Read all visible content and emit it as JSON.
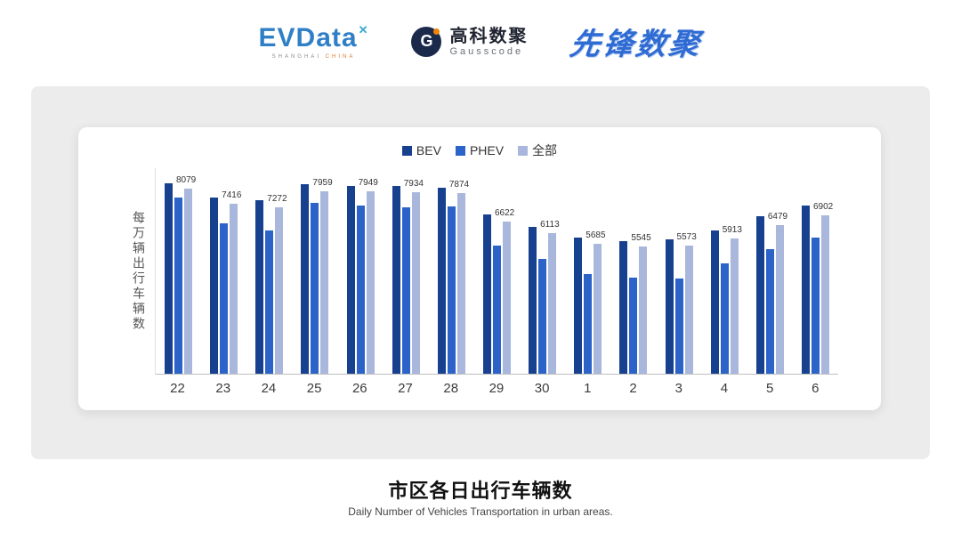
{
  "header": {
    "evdata": {
      "name": "EVData",
      "star": "✕",
      "tagline_left": "SHANGHAI",
      "tagline_right": "CHINA"
    },
    "gausscode": {
      "icon_letter": "G",
      "cn": "高科数聚",
      "en": "Gausscode"
    },
    "xianfeng": {
      "name": "先锋数聚"
    }
  },
  "chart_data": {
    "type": "bar",
    "title": "市区各日出行车辆数",
    "subtitle": "Daily Number of Vehicles Transportation in urban areas.",
    "ylabel": "每万辆出行车辆数",
    "xlabel": "",
    "ylim": [
      0,
      9000
    ],
    "grid": false,
    "legend_position": "top",
    "categories": [
      "22",
      "23",
      "24",
      "25",
      "26",
      "27",
      "28",
      "29",
      "30",
      "1",
      "2",
      "3",
      "4",
      "5",
      "6"
    ],
    "series": [
      {
        "name": "BEV",
        "color": "#17418f",
        "values": [
          8300,
          7700,
          7550,
          8250,
          8200,
          8200,
          8100,
          6950,
          6400,
          5950,
          5800,
          5850,
          6250,
          6850,
          7350
        ]
      },
      {
        "name": "PHEV",
        "color": "#2c63c9",
        "values": [
          7700,
          6550,
          6250,
          7450,
          7350,
          7250,
          7300,
          5600,
          5000,
          4350,
          4200,
          4150,
          4800,
          5450,
          5950
        ]
      },
      {
        "name": "全部",
        "color": "#a9b7dc",
        "values": [
          8079,
          7416,
          7272,
          7959,
          7949,
          7934,
          7874,
          6622,
          6113,
          5685,
          5545,
          5573,
          5913,
          6479,
          6902
        ]
      }
    ],
    "data_labels_series": "全部",
    "data_labels": [
      8079,
      7416,
      7272,
      7959,
      7949,
      7934,
      7874,
      6622,
      6113,
      5685,
      5545,
      5573,
      5913,
      6479,
      6902
    ]
  },
  "footer": {
    "title": "市区各日出行车辆数",
    "subtitle": "Daily Number of Vehicles Transportation in urban areas."
  }
}
